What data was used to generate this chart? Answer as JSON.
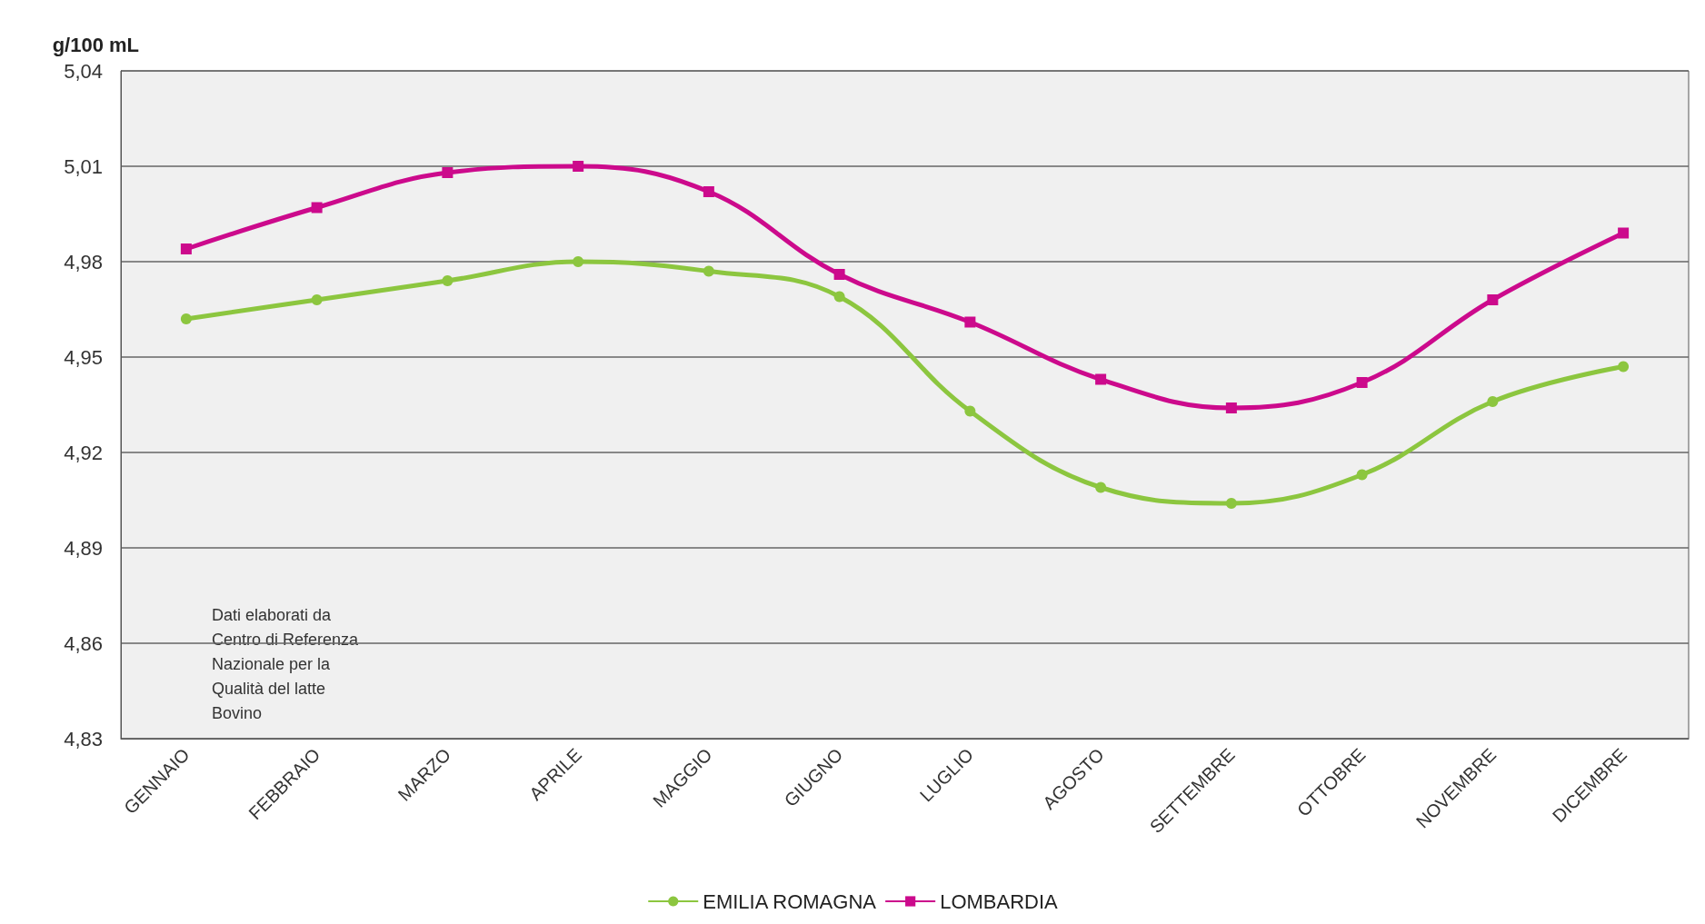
{
  "chart_data": {
    "type": "line",
    "ylabel": "g/100 mL",
    "categories": [
      "GENNAIO",
      "FEBBRAIO",
      "MARZO",
      "APRILE",
      "MAGGIO",
      "GIUGNO",
      "LUGLIO",
      "AGOSTO",
      "SETTEMBRE",
      "OTTOBRE",
      "NOVEMBRE",
      "DICEMBRE"
    ],
    "series": [
      {
        "name": "EMILIA ROMAGNA",
        "color": "#8cc63f",
        "marker": "circle",
        "values": [
          4.962,
          4.968,
          4.974,
          4.98,
          4.977,
          4.969,
          4.933,
          4.909,
          4.904,
          4.913,
          4.936,
          4.947
        ]
      },
      {
        "name": "LOMBARDIA",
        "color": "#cc0a8c",
        "marker": "square",
        "values": [
          4.984,
          4.997,
          5.008,
          5.01,
          5.002,
          4.976,
          4.961,
          4.943,
          4.934,
          4.942,
          4.968,
          4.989
        ]
      }
    ],
    "ylim": [
      4.83,
      5.04
    ],
    "yticks": [
      {
        "value": 4.83,
        "label": "4,83"
      },
      {
        "value": 4.86,
        "label": "4,86"
      },
      {
        "value": 4.89,
        "label": "4,89"
      },
      {
        "value": 4.92,
        "label": "4,92"
      },
      {
        "value": 4.95,
        "label": "4,95"
      },
      {
        "value": 4.98,
        "label": "4,98"
      },
      {
        "value": 5.01,
        "label": "5,01"
      },
      {
        "value": 5.04,
        "label": "5,04"
      }
    ],
    "grid": "y",
    "legend": "bottom",
    "line_style": "solid",
    "annotations": [
      "Dati elaborati da\nCentro di Referenza\nNazionale per la\nQualità del latte\nBovino"
    ]
  }
}
